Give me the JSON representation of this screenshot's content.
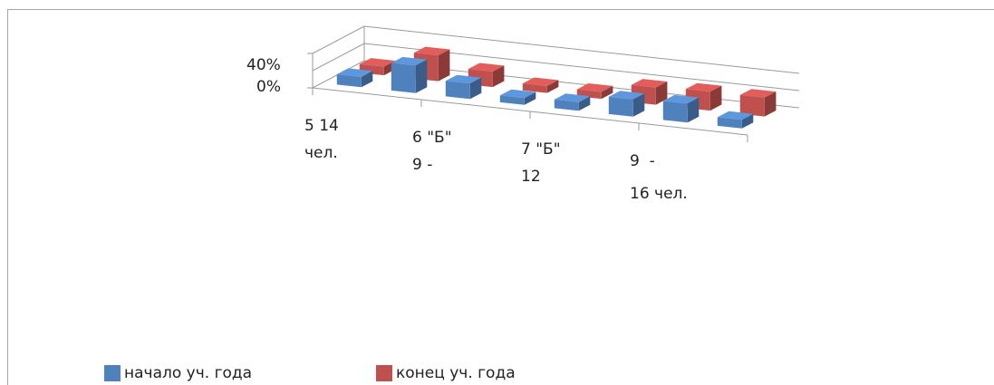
{
  "chart_data": {
    "type": "bar",
    "three_d": true,
    "y_tick_labels": [
      "40%",
      "0%"
    ],
    "ylim": [
      0,
      0.4
    ],
    "x_tick_labels": [
      [
        "5 14",
        "чел."
      ],
      [
        "6 \"Б\"",
        "9 -"
      ],
      [
        "7 \"Б\"",
        "12"
      ],
      [
        "9  -",
        "16 чел."
      ]
    ],
    "series": [
      {
        "name": "начало уч. года",
        "color": "#4f81bd",
        "values": [
          0.12,
          0.32,
          0.18,
          0.08,
          0.1,
          0.2,
          0.22,
          0.1
        ]
      },
      {
        "name": "конец уч. года",
        "color": "#c0504d",
        "values": [
          0.1,
          0.3,
          0.18,
          0.08,
          0.08,
          0.2,
          0.22,
          0.22
        ]
      }
    ],
    "legend_position": "bottom",
    "grid": true
  }
}
